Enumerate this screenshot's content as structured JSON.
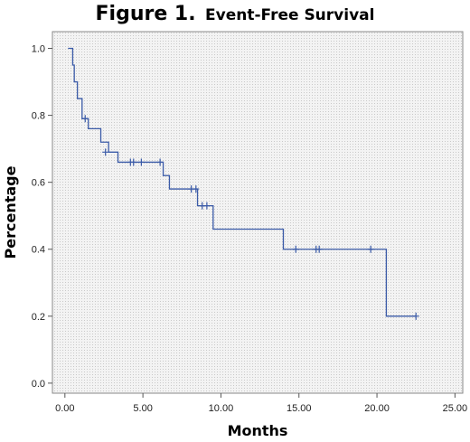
{
  "figure": {
    "number": "Figure 1.",
    "title": "Event-Free Survival"
  },
  "chart_data": {
    "type": "line",
    "style": "kaplan-meier step curve with censor marks",
    "title": "Figure 1. Event-Free Survival",
    "xlabel": "Months",
    "ylabel": "Percentage",
    "xlim": [
      -0.8,
      25.5
    ],
    "ylim": [
      -0.03,
      1.05
    ],
    "x_ticks": [
      0,
      5,
      10,
      15,
      20,
      25
    ],
    "x_tick_labels": [
      "0.00",
      "5.00",
      "10.00",
      "15.00",
      "20.00",
      "25.00"
    ],
    "y_ticks": [
      0,
      0.2,
      0.4,
      0.6,
      0.8,
      1.0
    ],
    "y_tick_labels": [
      "0.0",
      "0.2",
      "0.4",
      "0.6",
      "0.8",
      "1.0"
    ],
    "grid": false,
    "legend": "none",
    "line_color": "#3b5ba8",
    "plot_background": "#ededed",
    "series": [
      {
        "steps": [
          {
            "x": 0.2,
            "y": 1.0
          },
          {
            "x": 0.5,
            "y": 0.95
          },
          {
            "x": 0.6,
            "y": 0.9
          },
          {
            "x": 0.8,
            "y": 0.85
          },
          {
            "x": 1.1,
            "y": 0.79
          },
          {
            "x": 1.5,
            "y": 0.76
          },
          {
            "x": 2.3,
            "y": 0.72
          },
          {
            "x": 2.8,
            "y": 0.69
          },
          {
            "x": 3.4,
            "y": 0.66
          },
          {
            "x": 6.3,
            "y": 0.62
          },
          {
            "x": 6.7,
            "y": 0.58
          },
          {
            "x": 8.5,
            "y": 0.53
          },
          {
            "x": 9.5,
            "y": 0.46
          },
          {
            "x": 14.0,
            "y": 0.4
          },
          {
            "x": 20.6,
            "y": 0.2
          }
        ],
        "end_x": 22.5,
        "censored": [
          {
            "x": 1.3,
            "y": 0.79
          },
          {
            "x": 2.6,
            "y": 0.69
          },
          {
            "x": 4.2,
            "y": 0.66
          },
          {
            "x": 4.4,
            "y": 0.66
          },
          {
            "x": 4.9,
            "y": 0.66
          },
          {
            "x": 6.1,
            "y": 0.66
          },
          {
            "x": 8.1,
            "y": 0.58
          },
          {
            "x": 8.4,
            "y": 0.58
          },
          {
            "x": 8.8,
            "y": 0.53
          },
          {
            "x": 9.1,
            "y": 0.53
          },
          {
            "x": 14.8,
            "y": 0.4
          },
          {
            "x": 16.1,
            "y": 0.4
          },
          {
            "x": 16.3,
            "y": 0.4
          },
          {
            "x": 19.6,
            "y": 0.4
          },
          {
            "x": 22.5,
            "y": 0.2
          }
        ]
      }
    ]
  }
}
